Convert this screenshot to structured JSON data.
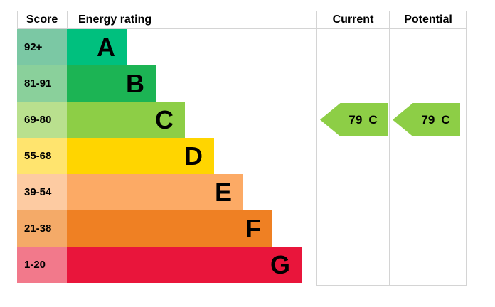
{
  "chart": {
    "header": {
      "score_label": "Score",
      "rating_label": "Energy rating",
      "current_label": "Current",
      "potential_label": "Potential"
    },
    "bands": [
      {
        "score": "92+",
        "letter": "A",
        "bar_color": "#00c07e",
        "score_tint": "#7bc8a4"
      },
      {
        "score": "81-91",
        "letter": "B",
        "bar_color": "#1cb454",
        "score_tint": "#8ad09b"
      },
      {
        "score": "69-80",
        "letter": "C",
        "bar_color": "#8dce46",
        "score_tint": "#b9e08e"
      },
      {
        "score": "55-68",
        "letter": "D",
        "bar_color": "#ffd500",
        "score_tint": "#ffe46e"
      },
      {
        "score": "39-54",
        "letter": "E",
        "bar_color": "#fcaa65",
        "score_tint": "#fdcba2"
      },
      {
        "score": "21-38",
        "letter": "F",
        "bar_color": "#ef8023",
        "score_tint": "#f4aa68"
      },
      {
        "score": "1-20",
        "letter": "G",
        "bar_color": "#e9153b",
        "score_tint": "#f2798b"
      }
    ],
    "current": {
      "score": "79",
      "band": "C",
      "arrow_color": "#8dce46"
    },
    "potential": {
      "score": "79",
      "band": "C",
      "arrow_color": "#8dce46"
    },
    "grid_color": "#d4d4d4"
  },
  "chart_data": {
    "type": "bar",
    "title": "EPC energy rating chart",
    "columns": [
      "Score",
      "Energy rating",
      "Current",
      "Potential"
    ],
    "categories": [
      "A",
      "B",
      "C",
      "D",
      "E",
      "F",
      "G"
    ],
    "score_ranges": [
      "92+",
      "81-91",
      "69-80",
      "55-68",
      "39-54",
      "21-38",
      "1-20"
    ],
    "band_colors": [
      "#00c07e",
      "#1cb454",
      "#8dce46",
      "#ffd500",
      "#fcaa65",
      "#ef8023",
      "#e9153b"
    ],
    "bar_relative_lengths": [
      1,
      2,
      3,
      4,
      5,
      6,
      7
    ],
    "current": {
      "score": 79,
      "band": "C"
    },
    "potential": {
      "score": 79,
      "band": "C"
    },
    "legend_position": "none",
    "grid": false
  }
}
